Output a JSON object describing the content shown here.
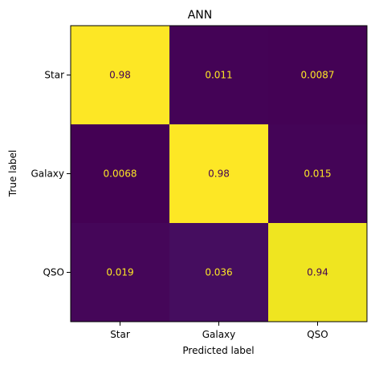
{
  "chart_data": {
    "type": "heatmap",
    "title": "ANN",
    "xlabel": "Predicted label",
    "ylabel": "True label",
    "x_categories": [
      "Star",
      "Galaxy",
      "QSO"
    ],
    "y_categories": [
      "Star",
      "Galaxy",
      "QSO"
    ],
    "values": [
      [
        0.98,
        0.011,
        0.0087
      ],
      [
        0.0068,
        0.98,
        0.015
      ],
      [
        0.019,
        0.036,
        0.94
      ]
    ],
    "value_labels": [
      [
        "0.98",
        "0.011",
        "0.0087"
      ],
      [
        "0.0068",
        "0.98",
        "0.015"
      ],
      [
        "0.019",
        "0.036",
        "0.94"
      ]
    ],
    "colormap": "viridis",
    "high_text_color": "#440154",
    "low_text_color": "#fde725",
    "grid": false,
    "colorbar": false
  }
}
